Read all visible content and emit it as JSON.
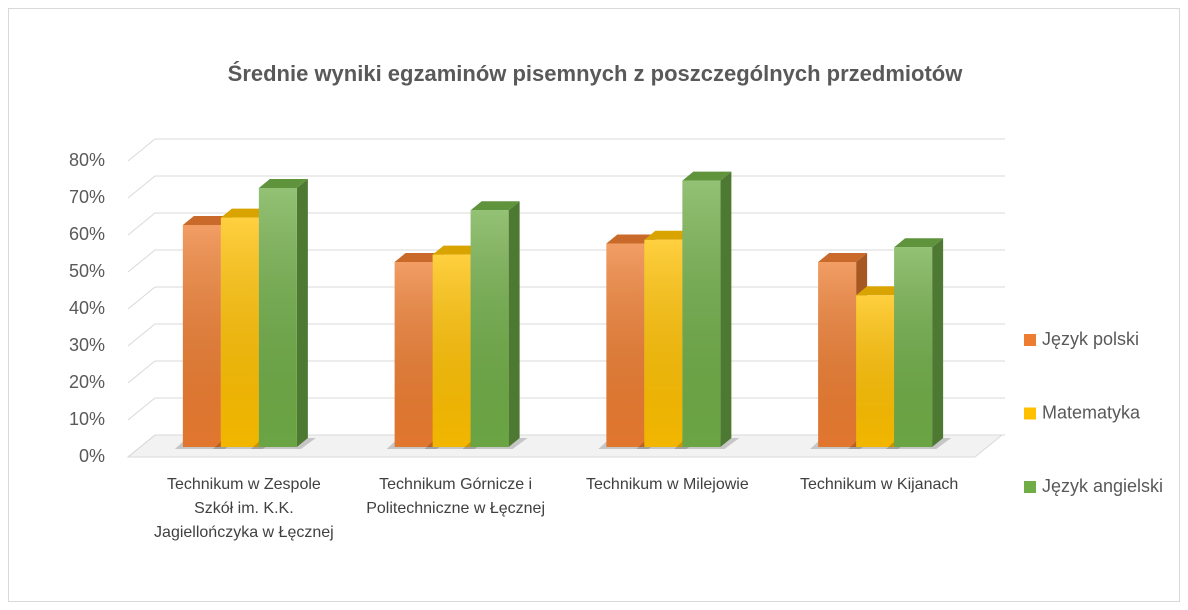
{
  "chart_data": {
    "type": "bar3d",
    "title": "Średnie wyniki egzaminów pisemnych z poszczególnych przedmiotów",
    "categories": [
      "Technikum w Zespole Szkół im. K.K. Jagiellończyka w Łęcznej",
      "Technikum Górnicze i Politechniczne w Łęcznej",
      "Technikum w Milejowie",
      "Technikum w Kijanach"
    ],
    "series": [
      {
        "name": "Język polski",
        "color": "#ed7d31",
        "values": [
          60,
          50,
          55,
          50
        ]
      },
      {
        "name": "Matematyka",
        "color": "#ffc000",
        "values": [
          62,
          52,
          56,
          41
        ]
      },
      {
        "name": "Język angielski",
        "color": "#70ad47",
        "values": [
          70,
          64,
          72,
          54
        ]
      }
    ],
    "ylim": [
      0,
      80
    ],
    "yticks": [
      {
        "value": 0,
        "label": "0%"
      },
      {
        "value": 10,
        "label": "10%"
      },
      {
        "value": 20,
        "label": "20%"
      },
      {
        "value": 30,
        "label": "30%"
      },
      {
        "value": 40,
        "label": "40%"
      },
      {
        "value": 50,
        "label": "50%"
      },
      {
        "value": 60,
        "label": "60%"
      },
      {
        "value": 70,
        "label": "70%"
      },
      {
        "value": 80,
        "label": "80%"
      }
    ],
    "grid": true,
    "legend": "right"
  }
}
